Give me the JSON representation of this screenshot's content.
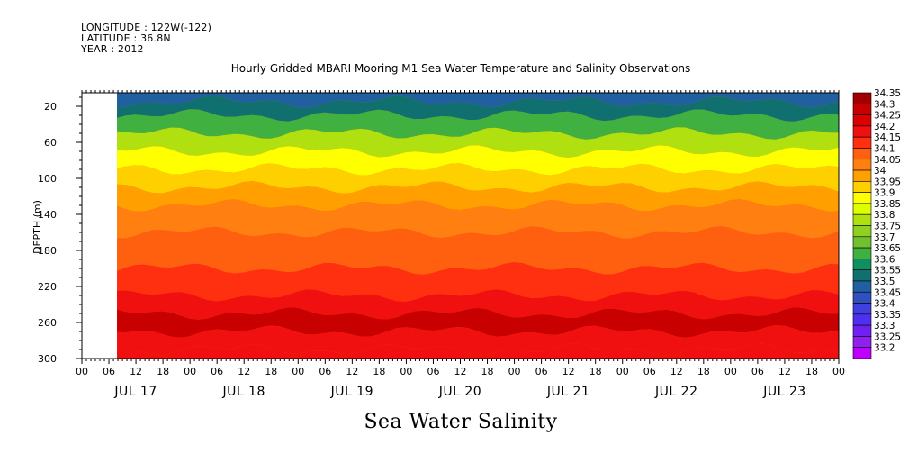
{
  "header": {
    "longitude": "LONGITUDE : 122W(-122)",
    "latitude": "LATITUDE : 36.8N",
    "year": "YEAR : 2012"
  },
  "chart_data": {
    "type": "heatmap",
    "title": "Hourly Gridded MBARI Mooring M1 Sea Water Temperature and Salinity Observations",
    "xlabel": "Sea Water Salinity",
    "ylabel": "DEPTH (m)",
    "ylim": [
      300,
      5
    ],
    "y_ticks": [
      20,
      60,
      100,
      140,
      180,
      220,
      260,
      300
    ],
    "x_hour_ticks": [
      "00",
      "06",
      "12",
      "18",
      "00",
      "06",
      "12",
      "18",
      "00",
      "06",
      "12",
      "18",
      "00",
      "06",
      "12",
      "18",
      "00",
      "06",
      "12",
      "18",
      "00",
      "06",
      "12",
      "18",
      "00",
      "06",
      "12",
      "18",
      "00"
    ],
    "x_day_labels": [
      "JUL 17",
      "JUL 18",
      "JUL 19",
      "JUL 20",
      "JUL 21",
      "JUL 22",
      "JUL 23"
    ],
    "data_start": "JUL 17 06:00",
    "colorbar_levels": [
      "34.35",
      "34.3",
      "34.25",
      "34.2",
      "34.15",
      "34.1",
      "34.05",
      "34",
      "33.95",
      "33.9",
      "33.85",
      "33.8",
      "33.75",
      "33.7",
      "33.65",
      "33.6",
      "33.55",
      "33.5",
      "33.45",
      "33.4",
      "33.35",
      "33.3",
      "33.25",
      "33.2"
    ],
    "colorbar_colors": [
      "#a00000",
      "#c80000",
      "#dc0000",
      "#f01010",
      "#ff3010",
      "#ff6010",
      "#ff8010",
      "#ffa000",
      "#ffd000",
      "#ffff00",
      "#ddff00",
      "#b0e010",
      "#90d020",
      "#70c030",
      "#40b040",
      "#109060",
      "#107070",
      "#2060a0",
      "#3050c0",
      "#4040e0",
      "#5030f0",
      "#7020f0",
      "#9020f0",
      "#c000ff"
    ],
    "depth_profile": [
      {
        "depth": 10,
        "value": 33.5
      },
      {
        "depth": 20,
        "value": 33.55
      },
      {
        "depth": 40,
        "value": 33.65
      },
      {
        "depth": 60,
        "value": 33.8
      },
      {
        "depth": 80,
        "value": 33.9
      },
      {
        "depth": 100,
        "value": 33.95
      },
      {
        "depth": 120,
        "value": 34.0
      },
      {
        "depth": 140,
        "value": 34.05
      },
      {
        "depth": 180,
        "value": 34.1
      },
      {
        "depth": 220,
        "value": 34.15
      },
      {
        "depth": 240,
        "value": 34.2
      },
      {
        "depth": 260,
        "value": 34.3
      },
      {
        "depth": 280,
        "value": 34.2
      },
      {
        "depth": 300,
        "value": 34.2
      }
    ],
    "grid": false,
    "legend": "colorbar right"
  }
}
